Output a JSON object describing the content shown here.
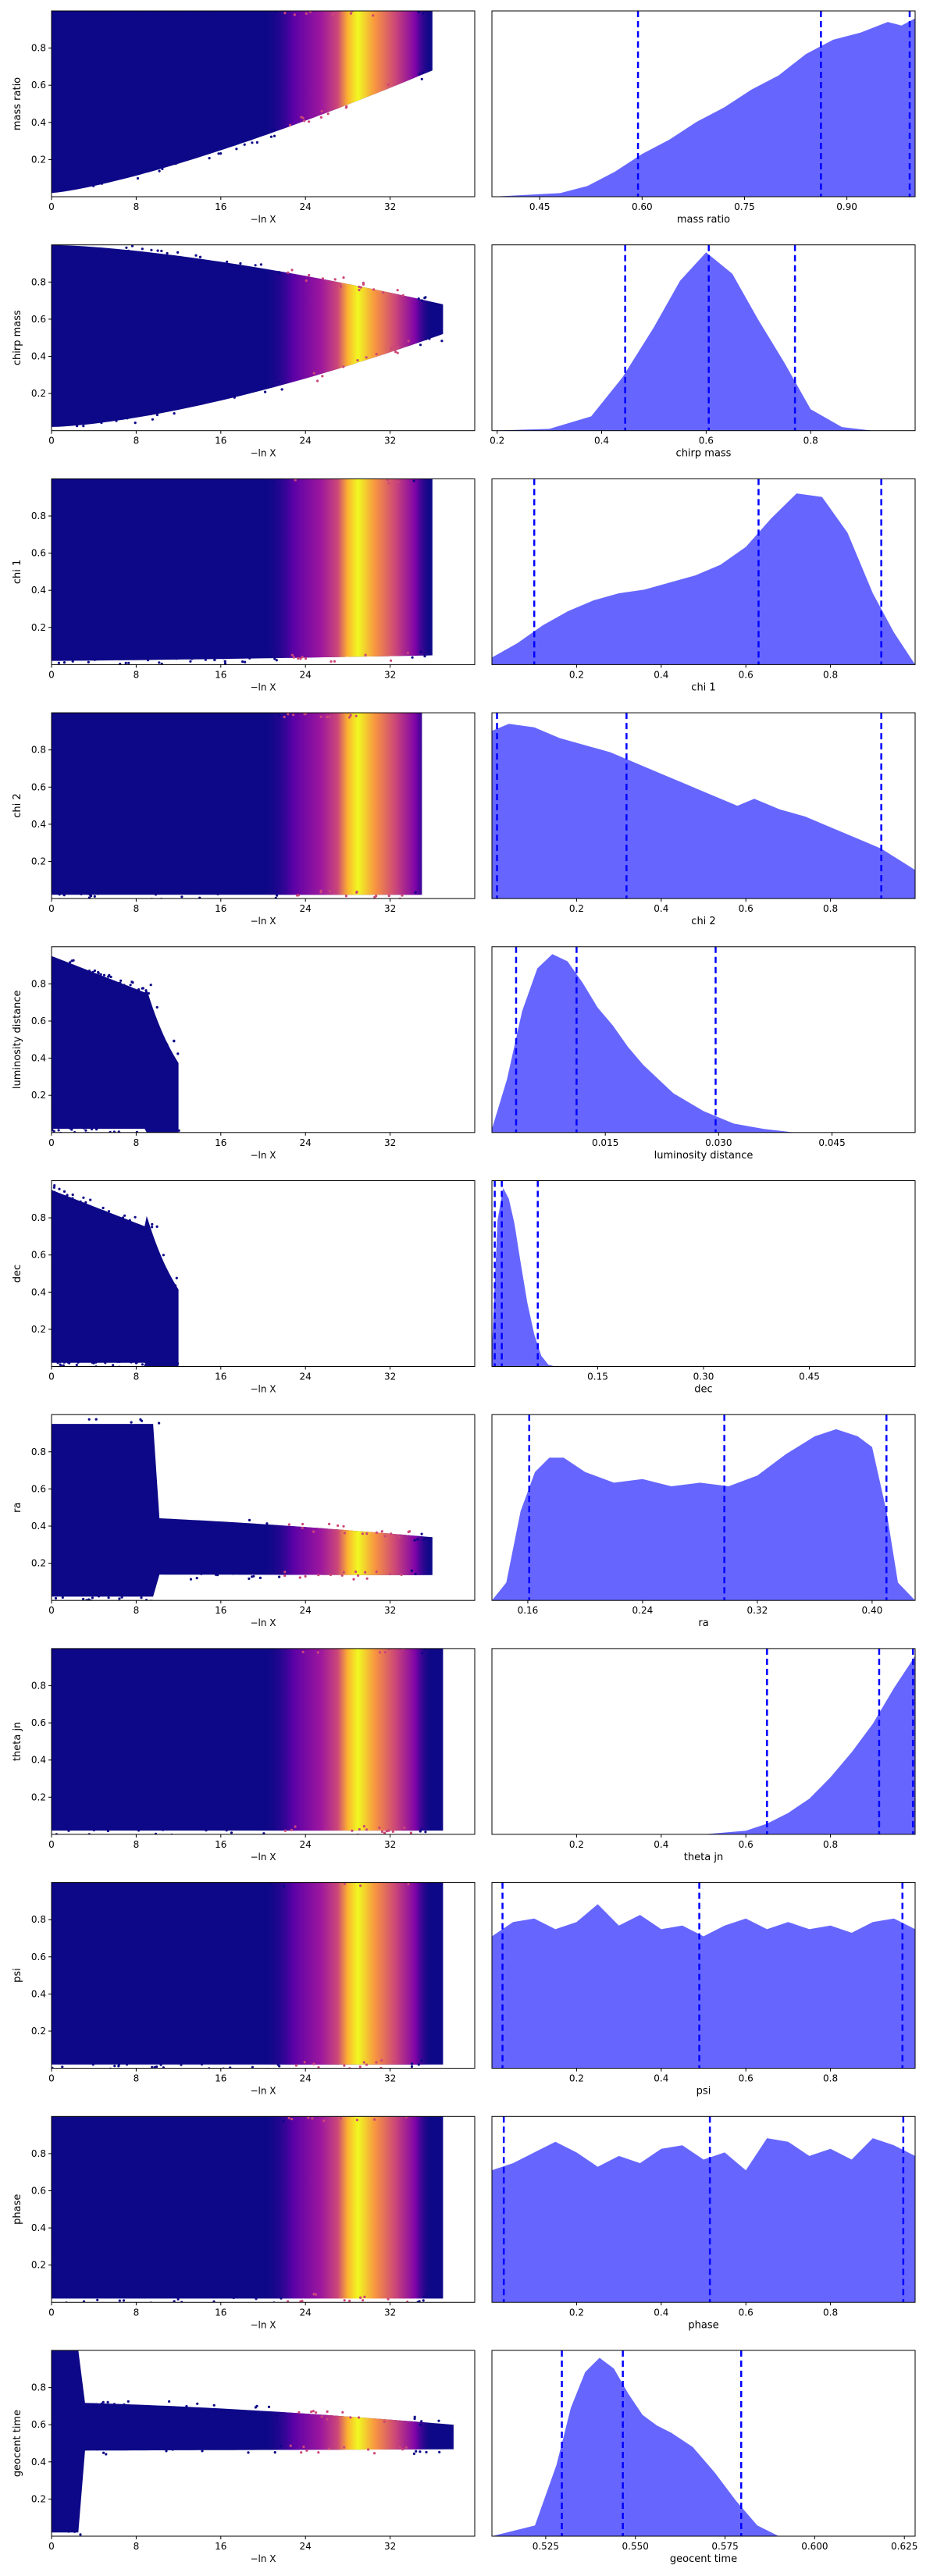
{
  "chart_data": {
    "type": "trace",
    "common": {
      "left_xlabel": "−ln X",
      "left_xticks": [
        0,
        8,
        16,
        24,
        32
      ],
      "left_xlim": [
        0,
        40
      ],
      "left_ylim": [
        0,
        1
      ],
      "left_yticks": [
        0.2,
        0.4,
        0.6,
        0.8
      ],
      "colormap": [
        "#0d0887",
        "#7e03a8",
        "#cc4778",
        "#f89540",
        "#f0f921"
      ],
      "fill_color": "#6666ff",
      "line_color": "#0000ff"
    },
    "rows": [
      {
        "ylabel": "mass ratio",
        "xlabel": "mass ratio",
        "xlim": [
          0.38,
          1.0
        ],
        "xticks": [
          0.45,
          0.6,
          0.75,
          0.9
        ],
        "xticklabels": [
          "0.45",
          "0.60",
          "0.75",
          "0.90"
        ],
        "quantiles": [
          0.594,
          0.862,
          0.992
        ],
        "pdf_x": [
          0.38,
          0.48,
          0.52,
          0.56,
          0.6,
          0.64,
          0.68,
          0.72,
          0.76,
          0.8,
          0.84,
          0.88,
          0.92,
          0.96,
          0.98,
          1.0
        ],
        "pdf_y": [
          0,
          0.02,
          0.06,
          0.14,
          0.24,
          0.32,
          0.42,
          0.5,
          0.6,
          0.68,
          0.8,
          0.88,
          0.92,
          0.98,
          0.96,
          1.0
        ],
        "trace": {
          "ymin_start": 0.02,
          "ymin_end": 0.68,
          "ymax": 1.0,
          "xmax_start": 34,
          "xmax_end": 36
        }
      },
      {
        "ylabel": "chirp mass",
        "xlabel": "chirp mass",
        "xlim": [
          0.19,
          1.0
        ],
        "xticks": [
          0.2,
          0.4,
          0.6,
          0.8
        ],
        "xticklabels": [
          "0.2",
          "0.4",
          "0.6",
          "0.8"
        ],
        "quantiles": [
          0.445,
          0.605,
          0.77
        ],
        "pdf_x": [
          0.19,
          0.3,
          0.38,
          0.44,
          0.5,
          0.55,
          0.6,
          0.65,
          0.7,
          0.75,
          0.8,
          0.86,
          0.92,
          1.0
        ],
        "pdf_y": [
          0,
          0.01,
          0.08,
          0.3,
          0.58,
          0.84,
          1.0,
          0.88,
          0.62,
          0.38,
          0.12,
          0.02,
          0,
          0
        ],
        "trace": {
          "ymin_start": 0.02,
          "ymin_end": 0.6,
          "ymax": 1.0,
          "xmax_start": 26,
          "xmax_end": 37,
          "converge": 0.6
        }
      },
      {
        "ylabel": "chi 1",
        "xlabel": "chi 1",
        "xlim": [
          0.0,
          1.0
        ],
        "xticks": [
          0.2,
          0.4,
          0.6,
          0.8
        ],
        "xticklabels": [
          "0.2",
          "0.4",
          "0.6",
          "0.8"
        ],
        "quantiles": [
          0.1,
          0.63,
          0.92
        ],
        "pdf_x": [
          0.0,
          0.06,
          0.12,
          0.18,
          0.24,
          0.3,
          0.36,
          0.42,
          0.48,
          0.54,
          0.6,
          0.66,
          0.72,
          0.78,
          0.84,
          0.9,
          0.95,
          1.0
        ],
        "pdf_y": [
          0.04,
          0.12,
          0.22,
          0.3,
          0.36,
          0.4,
          0.42,
          0.46,
          0.5,
          0.56,
          0.66,
          0.82,
          0.96,
          0.94,
          0.74,
          0.4,
          0.18,
          0.0
        ],
        "trace": {
          "ymin_start": 0.02,
          "ymin_end": 0.05,
          "ymax": 1.0,
          "xmax_start": 34,
          "xmax_end": 36
        }
      },
      {
        "ylabel": "chi 2",
        "xlabel": "chi 2",
        "xlim": [
          0.0,
          1.0
        ],
        "xticks": [
          0.2,
          0.4,
          0.6,
          0.8
        ],
        "xticklabels": [
          "0.2",
          "0.4",
          "0.6",
          "0.8"
        ],
        "quantiles": [
          0.012,
          0.318,
          0.92
        ],
        "pdf_x": [
          0.0,
          0.04,
          0.1,
          0.16,
          0.22,
          0.28,
          0.34,
          0.4,
          0.46,
          0.52,
          0.58,
          0.62,
          0.68,
          0.74,
          0.8,
          0.86,
          0.92,
          0.96,
          1.0
        ],
        "pdf_y": [
          0.94,
          0.98,
          0.96,
          0.9,
          0.86,
          0.82,
          0.76,
          0.7,
          0.64,
          0.58,
          0.52,
          0.56,
          0.5,
          0.46,
          0.4,
          0.34,
          0.28,
          0.22,
          0.16
        ],
        "trace": {
          "ymin_start": 0.02,
          "ymin_end": 0.02,
          "ymax": 1.0,
          "xmax_start": 33,
          "xmax_end": 35
        }
      },
      {
        "ylabel": "luminosity distance",
        "xlabel": "luminosity distance",
        "xlim": [
          0.0,
          0.056
        ],
        "xticks": [
          0.015,
          0.03,
          0.045
        ],
        "xticklabels": [
          "0.015",
          "0.030",
          "0.045"
        ],
        "quantiles": [
          0.0032,
          0.0112,
          0.0296
        ],
        "pdf_x": [
          0.0,
          0.002,
          0.004,
          0.006,
          0.008,
          0.01,
          0.012,
          0.014,
          0.016,
          0.018,
          0.02,
          0.024,
          0.028,
          0.032,
          0.036,
          0.04,
          0.056
        ],
        "pdf_y": [
          0.02,
          0.3,
          0.68,
          0.92,
          1.0,
          0.96,
          0.84,
          0.7,
          0.6,
          0.48,
          0.38,
          0.22,
          0.12,
          0.05,
          0.02,
          0.0,
          0.0
        ],
        "trace": {
          "ymin_start": 0.02,
          "ymin_end": 0.02,
          "ymax": 0.95,
          "xmax_start": 9,
          "xmax_end": 12,
          "decay": 0.02
        }
      },
      {
        "ylabel": "dec",
        "xlabel": "dec",
        "xlim": [
          0.0,
          0.6
        ],
        "xticks": [
          0.15,
          0.3,
          0.45
        ],
        "xticklabels": [
          "0.15",
          "0.30",
          "0.45"
        ],
        "quantiles": [
          0.004,
          0.014,
          0.065
        ],
        "pdf_x": [
          0.0,
          0.008,
          0.016,
          0.024,
          0.032,
          0.04,
          0.05,
          0.06,
          0.07,
          0.08,
          0.09,
          0.6
        ],
        "pdf_y": [
          0.1,
          0.82,
          1.0,
          0.94,
          0.8,
          0.6,
          0.36,
          0.18,
          0.06,
          0.01,
          0.0,
          0.0
        ],
        "trace": {
          "ymin_start": 0.02,
          "ymin_end": 0.02,
          "ymax": 0.95,
          "xmax_start": 9,
          "xmax_end": 12,
          "decay": 0.06
        }
      },
      {
        "ylabel": "ra",
        "xlabel": "ra",
        "xlim": [
          0.135,
          0.43
        ],
        "xticks": [
          0.16,
          0.24,
          0.32,
          0.4
        ],
        "xticklabels": [
          "0.16",
          "0.24",
          "0.32",
          "0.40"
        ],
        "quantiles": [
          0.161,
          0.297,
          0.41
        ],
        "pdf_x": [
          0.135,
          0.145,
          0.155,
          0.165,
          0.175,
          0.185,
          0.2,
          0.22,
          0.24,
          0.26,
          0.28,
          0.3,
          0.32,
          0.34,
          0.36,
          0.375,
          0.39,
          0.4,
          0.41,
          0.418,
          0.43
        ],
        "pdf_y": [
          0.0,
          0.1,
          0.5,
          0.72,
          0.8,
          0.8,
          0.72,
          0.66,
          0.68,
          0.64,
          0.66,
          0.64,
          0.7,
          0.82,
          0.92,
          0.96,
          0.92,
          0.86,
          0.5,
          0.1,
          0.0
        ],
        "trace": {
          "ymin_start": 0.02,
          "ymin_end": 0.12,
          "ymax": 0.95,
          "xmax_start": 10,
          "xmax_end": 36,
          "band": [
            0.14,
            0.46
          ]
        }
      },
      {
        "ylabel": "theta jn",
        "xlabel": "theta jn",
        "xlim": [
          0.0,
          1.0
        ],
        "xticks": [
          0.2,
          0.4,
          0.6,
          0.8
        ],
        "xticklabels": [
          "0.2",
          "0.4",
          "0.6",
          "0.8"
        ],
        "quantiles": [
          0.65,
          0.915,
          0.995
        ],
        "pdf_x": [
          0.0,
          0.5,
          0.6,
          0.65,
          0.7,
          0.75,
          0.8,
          0.85,
          0.9,
          0.95,
          1.0
        ],
        "pdf_y": [
          0.0,
          0.0,
          0.02,
          0.06,
          0.12,
          0.2,
          0.32,
          0.46,
          0.62,
          0.82,
          1.0
        ],
        "trace": {
          "ymin_start": 0.02,
          "ymin_end": 0.02,
          "ymax": 1.0,
          "xmax_start": 34,
          "xmax_end": 37
        }
      },
      {
        "ylabel": "psi",
        "xlabel": "psi",
        "xlim": [
          0.0,
          1.0
        ],
        "xticks": [
          0.2,
          0.4,
          0.6,
          0.8
        ],
        "xticklabels": [
          "0.2",
          "0.4",
          "0.6",
          "0.8"
        ],
        "quantiles": [
          0.025,
          0.49,
          0.97
        ],
        "pdf_x": [
          0.0,
          0.05,
          0.1,
          0.15,
          0.2,
          0.25,
          0.3,
          0.35,
          0.4,
          0.45,
          0.5,
          0.55,
          0.6,
          0.65,
          0.7,
          0.75,
          0.8,
          0.85,
          0.9,
          0.95,
          1.0
        ],
        "pdf_y": [
          0.74,
          0.82,
          0.84,
          0.78,
          0.82,
          0.92,
          0.8,
          0.86,
          0.78,
          0.8,
          0.74,
          0.8,
          0.84,
          0.78,
          0.82,
          0.78,
          0.8,
          0.76,
          0.82,
          0.84,
          0.78
        ],
        "trace": {
          "ymin_start": 0.02,
          "ymin_end": 0.02,
          "ymax": 1.0,
          "xmax_start": 34,
          "xmax_end": 37
        }
      },
      {
        "ylabel": "phase",
        "xlabel": "phase",
        "xlim": [
          0.0,
          1.0
        ],
        "xticks": [
          0.2,
          0.4,
          0.6,
          0.8
        ],
        "xticklabels": [
          "0.2",
          "0.4",
          "0.6",
          "0.8"
        ],
        "quantiles": [
          0.028,
          0.515,
          0.972
        ],
        "pdf_x": [
          0.0,
          0.05,
          0.1,
          0.15,
          0.2,
          0.25,
          0.3,
          0.35,
          0.4,
          0.45,
          0.5,
          0.55,
          0.6,
          0.65,
          0.7,
          0.75,
          0.8,
          0.85,
          0.9,
          0.95,
          1.0
        ],
        "pdf_y": [
          0.74,
          0.78,
          0.84,
          0.9,
          0.84,
          0.76,
          0.82,
          0.78,
          0.86,
          0.88,
          0.8,
          0.84,
          0.74,
          0.92,
          0.9,
          0.82,
          0.86,
          0.8,
          0.92,
          0.88,
          0.82
        ],
        "trace": {
          "ymin_start": 0.02,
          "ymin_end": 0.02,
          "ymax": 1.0,
          "xmax_start": 34,
          "xmax_end": 37
        }
      },
      {
        "ylabel": "geocent time",
        "xlabel": "geocent time",
        "xlim": [
          0.51,
          0.628
        ],
        "xticks": [
          0.525,
          0.55,
          0.575,
          0.6,
          0.625
        ],
        "xticklabels": [
          "0.525",
          "0.550",
          "0.575",
          "0.600",
          "0.625"
        ],
        "quantiles": [
          0.5295,
          0.5465,
          0.5795
        ],
        "pdf_x": [
          0.51,
          0.522,
          0.528,
          0.532,
          0.536,
          0.54,
          0.544,
          0.548,
          0.552,
          0.556,
          0.56,
          0.566,
          0.572,
          0.578,
          0.584,
          0.59,
          0.628
        ],
        "pdf_y": [
          0.0,
          0.06,
          0.4,
          0.72,
          0.92,
          1.0,
          0.94,
          0.8,
          0.68,
          0.62,
          0.58,
          0.5,
          0.36,
          0.2,
          0.06,
          0.0,
          0.0
        ],
        "trace": {
          "ymin_start": 0.02,
          "ymin_end": 0.5,
          "ymax": 1.0,
          "xmax_start": 3,
          "xmax_end": 38,
          "band": [
            0.46,
            0.72
          ]
        }
      }
    ]
  }
}
